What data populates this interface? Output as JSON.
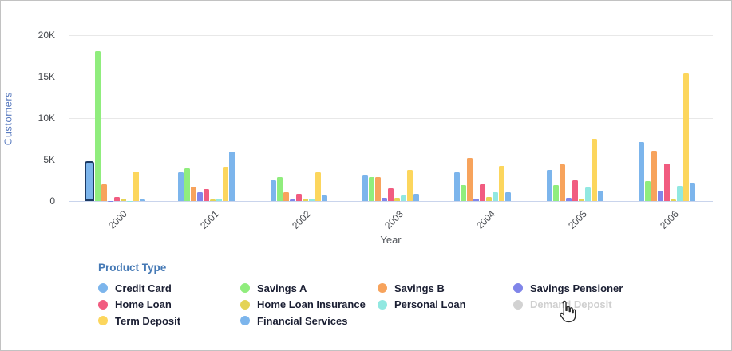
{
  "y_axis": {
    "title": "Customers",
    "ticks": [
      "20K",
      "15K",
      "10K",
      "5K",
      "0"
    ]
  },
  "x_axis": {
    "title": "Year",
    "labels": [
      "2000",
      "2001",
      "2002",
      "2003",
      "2004",
      "2005",
      "2006"
    ]
  },
  "legend": {
    "title": "Product Type",
    "items": [
      {
        "label": "Credit Card",
        "color": "#7cb5ec",
        "enabled": true
      },
      {
        "label": "Savings A",
        "color": "#90ed7d",
        "enabled": true
      },
      {
        "label": "Savings B",
        "color": "#f7a35c",
        "enabled": true
      },
      {
        "label": "Savings Pensioner",
        "color": "#8085e9",
        "enabled": true
      },
      {
        "label": "Home Loan",
        "color": "#f15c80",
        "enabled": true
      },
      {
        "label": "Home Loan Insurance",
        "color": "#e4d354",
        "enabled": true
      },
      {
        "label": "Personal Loan",
        "color": "#91e8e1",
        "enabled": true
      },
      {
        "label": "Demand Deposit",
        "color": "#d2d2d2",
        "enabled": false
      },
      {
        "label": "Term Deposit",
        "color": "#fcd65d",
        "enabled": true
      },
      {
        "label": "Financial Services",
        "color": "#7cb5ec",
        "enabled": true
      }
    ]
  },
  "chart_data": {
    "type": "bar",
    "title": "",
    "xlabel": "Year",
    "ylabel": "Customers",
    "ylim": [
      0,
      20000
    ],
    "grid": true,
    "legend_position": "bottom",
    "categories": [
      "2000",
      "2001",
      "2002",
      "2003",
      "2004",
      "2005",
      "2006"
    ],
    "series": [
      {
        "name": "Credit Card",
        "color": "#7cb5ec",
        "visible": true,
        "values": [
          4400,
          3500,
          2500,
          3100,
          3500,
          3800,
          7100
        ]
      },
      {
        "name": "Savings A",
        "color": "#90ed7d",
        "visible": true,
        "values": [
          18100,
          3900,
          2900,
          2900,
          1900,
          1900,
          2400
        ]
      },
      {
        "name": "Savings B",
        "color": "#f7a35c",
        "visible": true,
        "values": [
          2000,
          1700,
          1100,
          2850,
          5200,
          4400,
          6100
        ]
      },
      {
        "name": "Savings Pensioner",
        "color": "#8085e9",
        "visible": true,
        "values": [
          50,
          1100,
          200,
          350,
          250,
          400,
          1300
        ]
      },
      {
        "name": "Home Loan",
        "color": "#f15c80",
        "visible": true,
        "values": [
          450,
          1400,
          900,
          1500,
          2000,
          2500,
          4500
        ]
      },
      {
        "name": "Home Loan Insurance",
        "color": "#e4d354",
        "visible": true,
        "values": [
          250,
          200,
          250,
          350,
          450,
          300,
          150
        ]
      },
      {
        "name": "Personal Loan",
        "color": "#91e8e1",
        "visible": true,
        "values": [
          50,
          250,
          250,
          700,
          1050,
          1600,
          1850
        ]
      },
      {
        "name": "Term Deposit",
        "color": "#fcd65d",
        "visible": true,
        "values": [
          3600,
          4100,
          3500,
          3800,
          4200,
          7500,
          15400
        ]
      },
      {
        "name": "Financial Services",
        "color": "#7cb5ec",
        "visible": true,
        "values": [
          200,
          6000,
          650,
          900,
          1050,
          1300,
          2100
        ]
      },
      {
        "name": "Demand Deposit",
        "color": "#d2d2d2",
        "visible": false,
        "values": []
      }
    ],
    "selected_bar": {
      "series": "Credit Card",
      "category": "2000"
    }
  }
}
